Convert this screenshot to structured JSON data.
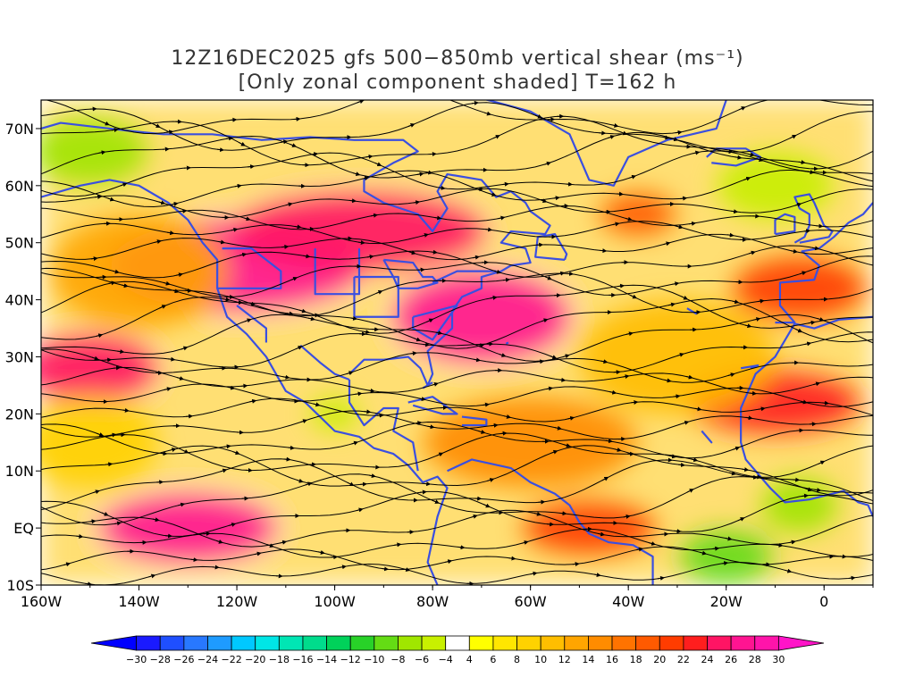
{
  "title": {
    "line1": "12Z16DEC2025 gfs 500−850mb vertical shear (ms⁻¹)",
    "line2": "[Only zonal component shaded] T=162 h"
  },
  "map": {
    "lon_range": [
      -160,
      10
    ],
    "lat_range": [
      -10,
      75
    ],
    "x_ticks": [
      {
        "lon": -160,
        "label": "160W"
      },
      {
        "lon": -140,
        "label": "140W"
      },
      {
        "lon": -120,
        "label": "120W"
      },
      {
        "lon": -100,
        "label": "100W"
      },
      {
        "lon": -80,
        "label": "80W"
      },
      {
        "lon": -60,
        "label": "60W"
      },
      {
        "lon": -40,
        "label": "40W"
      },
      {
        "lon": -20,
        "label": "20W"
      },
      {
        "lon": 0,
        "label": "0"
      }
    ],
    "y_ticks": [
      {
        "lat": 70,
        "label": "70N"
      },
      {
        "lat": 60,
        "label": "60N"
      },
      {
        "lat": 50,
        "label": "50N"
      },
      {
        "lat": 40,
        "label": "40N"
      },
      {
        "lat": 30,
        "label": "30N"
      },
      {
        "lat": 20,
        "label": "20N"
      },
      {
        "lat": 10,
        "label": "10N"
      },
      {
        "lat": 0,
        "label": "EQ"
      },
      {
        "lat": -10,
        "label": "10S"
      }
    ],
    "coastline_color": "#3a4fe0",
    "streamline_color": "#000000"
  },
  "shear_blobs": [
    {
      "lon": -120,
      "lat": 46,
      "rx": 26,
      "ry": 8,
      "level": 26
    },
    {
      "lon": -95,
      "lat": 52,
      "rx": 26,
      "ry": 7,
      "level": 24
    },
    {
      "lon": -70,
      "lat": 37,
      "rx": 18,
      "ry": 8,
      "level": 26
    },
    {
      "lon": -150,
      "lat": 28,
      "rx": 14,
      "ry": 6,
      "level": 24
    },
    {
      "lon": -130,
      "lat": 0,
      "rx": 18,
      "ry": 6,
      "level": 26
    },
    {
      "lon": -48,
      "lat": 0,
      "rx": 14,
      "ry": 5,
      "level": 20
    },
    {
      "lon": -10,
      "lat": 22,
      "rx": 18,
      "ry": 6,
      "level": 22
    },
    {
      "lon": -5,
      "lat": 42,
      "rx": 14,
      "ry": 6,
      "level": 20
    },
    {
      "lon": -38,
      "lat": 55,
      "rx": 8,
      "ry": 4,
      "level": 18
    },
    {
      "lon": -60,
      "lat": 15,
      "rx": 22,
      "ry": 8,
      "level": 14
    },
    {
      "lon": -140,
      "lat": 45,
      "rx": 18,
      "ry": 10,
      "level": 12
    },
    {
      "lon": -30,
      "lat": 30,
      "rx": 20,
      "ry": 10,
      "level": 10
    },
    {
      "lon": -150,
      "lat": 15,
      "rx": 14,
      "ry": 8,
      "level": 8
    },
    {
      "lon": -150,
      "lat": 66,
      "rx": 12,
      "ry": 6,
      "level": -8
    },
    {
      "lon": -20,
      "lat": -5,
      "rx": 10,
      "ry": 5,
      "level": -10
    },
    {
      "lon": -5,
      "lat": 4,
      "rx": 8,
      "ry": 5,
      "level": -8
    },
    {
      "lon": -10,
      "lat": 60,
      "rx": 12,
      "ry": 6,
      "level": -6
    },
    {
      "lon": -100,
      "lat": 20,
      "rx": 5,
      "ry": 3,
      "level": -6
    }
  ],
  "colorbar": {
    "levels": [
      -30,
      -28,
      -26,
      -24,
      -22,
      -20,
      -18,
      -16,
      -14,
      -12,
      -10,
      -8,
      -6,
      -4,
      4,
      6,
      8,
      10,
      12,
      14,
      16,
      18,
      20,
      22,
      24,
      26,
      28,
      30
    ],
    "labels": [
      "−30",
      "−28",
      "−26",
      "−24",
      "−22",
      "−20",
      "−18",
      "−16",
      "−14",
      "−12",
      "−10",
      "−8",
      "−6",
      "−4",
      "4",
      "6",
      "8",
      "10",
      "12",
      "14",
      "16",
      "18",
      "20",
      "22",
      "24",
      "26",
      "28",
      "30"
    ],
    "colors": [
      "#0000ff",
      "#1a1aff",
      "#1f4fff",
      "#2878ff",
      "#1e9bff",
      "#00c8ff",
      "#00e6e6",
      "#00e6b4",
      "#00dc8c",
      "#00d25a",
      "#28d228",
      "#64dc14",
      "#a0e600",
      "#c8f000",
      "#ffffff",
      "#ffff00",
      "#ffe600",
      "#ffd200",
      "#ffbe00",
      "#ffa500",
      "#ff8c00",
      "#ff7300",
      "#ff5a00",
      "#ff3c00",
      "#ff1e1e",
      "#ff1464",
      "#ff1491",
      "#ff14aa",
      "#ff14c8"
    ]
  }
}
